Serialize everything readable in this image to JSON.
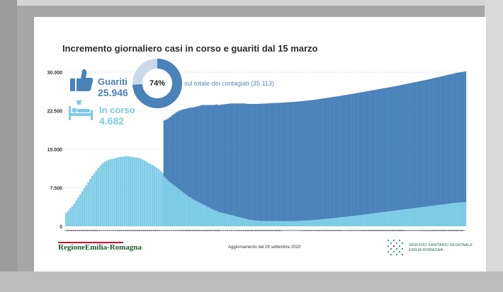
{
  "chart_data": {
    "type": "bar",
    "title": "Incremento giornaliero casi in corso e guariti dal 15 marzo",
    "ylim": [
      0,
      30000
    ],
    "yticks": [
      0,
      7500,
      15000,
      22500,
      30000
    ],
    "ytick_labels": [
      "0",
      "7.500",
      "15.000",
      "22.500",
      "30.000"
    ],
    "x_date_labels": [
      "15/3",
      "16/3",
      "17/3",
      "18/3",
      "19/3",
      "20/3",
      "21/3",
      "22/3",
      "23/3",
      "24/3",
      "25/3",
      "26/3",
      "27/3",
      "28/3",
      "29/3",
      "30/3",
      "31/3",
      "1/4",
      "2/4",
      "3/4",
      "4/4",
      "5/4",
      "6/4",
      "7/4",
      "8/4",
      "9/4",
      "10/4",
      "11/4",
      "12/4",
      "13/4",
      "14/4",
      "15/4",
      "16/4",
      "17/4",
      "18/4",
      "19/4",
      "20/4",
      "21/4",
      "22/4",
      "23/4",
      "24/4",
      "25/4",
      "26/4",
      "27/4",
      "28/4",
      "29/4",
      "30/4",
      "1/5",
      "2/5",
      "3/5",
      "4/5",
      "5/5",
      "6/5",
      "7/5",
      "8/5",
      "9/5",
      "10/5",
      "11/5",
      "12/5",
      "13/5",
      "14/5",
      "15/5",
      "16/5",
      "17/5",
      "18/5",
      "19/5",
      "20/5",
      "21/5",
      "22/5",
      "23/5",
      "24/5",
      "25/5",
      "26/5",
      "27/5",
      "28/5",
      "29/5",
      "30/5",
      "31/5",
      "1/6",
      "2/6",
      "3/6",
      "4/6",
      "5/6",
      "6/6",
      "7/6",
      "8/6",
      "9/6",
      "10/6",
      "11/6",
      "12/6",
      "13/6",
      "14/6",
      "15/6",
      "16/6",
      "17/6",
      "18/6",
      "19/6",
      "20/6",
      "21/6",
      "22/6",
      "23/6",
      "24/6",
      "25/6",
      "26/6",
      "27/6",
      "28/6",
      "29/6",
      "30/6",
      "1/7",
      "2/7",
      "3/7",
      "4/7",
      "5/7",
      "6/7",
      "7/7",
      "8/7",
      "9/7",
      "10/7",
      "11/7",
      "12/7",
      "13/7",
      "14/7",
      "15/7",
      "16/7",
      "17/7",
      "18/7",
      "19/7",
      "20/7",
      "21/7",
      "22/7",
      "23/7",
      "24/7",
      "25/7",
      "26/7",
      "27/7",
      "28/7",
      "29/7",
      "30/7",
      "31/7",
      "1/8",
      "2/8",
      "3/8",
      "4/8",
      "5/8",
      "6/8",
      "7/8",
      "8/8",
      "9/8",
      "10/8",
      "11/8",
      "12/8",
      "13/8",
      "14/8",
      "15/8",
      "16/8",
      "17/8",
      "18/8",
      "19/8",
      "20/8",
      "21/8",
      "22/8",
      "23/8",
      "24/8",
      "25/8",
      "26/8",
      "27/8",
      "28/8",
      "29/8",
      "30/8",
      "31/8",
      "1/9",
      "2/9",
      "3/9",
      "4/9",
      "5/9",
      "6/9",
      "7/9",
      "8/9",
      "9/9",
      "10/9",
      "11/9",
      "12/9",
      "13/9",
      "14/9",
      "15/9",
      "16/9",
      "17/9",
      "18/9",
      "19/9",
      "20/9",
      "21/9",
      "22/9",
      "23/9",
      "24/9",
      "25/9",
      "26/9",
      "27/9",
      "28/9",
      "29/9"
    ],
    "series": [
      {
        "name": "In corso",
        "color": "#7ccbe6",
        "values": [
          2600,
          3000,
          3500,
          3900,
          4400,
          5000,
          5600,
          6200,
          6800,
          7400,
          8000,
          8600,
          9200,
          9800,
          10300,
          10800,
          11300,
          11800,
          12200,
          12500,
          12700,
          12900,
          13000,
          13100,
          13200,
          13300,
          13400,
          13500,
          13500,
          13600,
          13600,
          13600,
          13500,
          13500,
          13400,
          13400,
          13300,
          13200,
          13000,
          12800,
          12600,
          12300,
          12100,
          11900,
          11700,
          11400,
          11100,
          10800,
          10400,
          9600,
          9200,
          8800,
          8500,
          8200,
          7900,
          7600,
          7300,
          7000,
          6700,
          6400,
          6100,
          5800,
          5600,
          5300,
          5100,
          4900,
          4700,
          4500,
          4300,
          4100,
          3900,
          3700,
          3500,
          3300,
          3100,
          3000,
          2800,
          2700,
          2600,
          2500,
          2400,
          2300,
          2200,
          2100,
          2000,
          1900,
          1800,
          1700,
          1600,
          1500,
          1400,
          1300,
          1250,
          1200,
          1150,
          1100,
          1080,
          1050,
          1030,
          1020,
          1010,
          1000,
          1000,
          990,
          990,
          990,
          980,
          980,
          980,
          990,
          990,
          1000,
          1000,
          1010,
          1020,
          1030,
          1050,
          1070,
          1090,
          1110,
          1130,
          1150,
          1170,
          1200,
          1230,
          1260,
          1300,
          1340,
          1380,
          1420,
          1460,
          1500,
          1540,
          1580,
          1620,
          1660,
          1700,
          1740,
          1780,
          1820,
          1860,
          1900,
          1950,
          2000,
          2050,
          2100,
          2150,
          2200,
          2250,
          2300,
          2350,
          2400,
          2450,
          2500,
          2550,
          2600,
          2650,
          2700,
          2750,
          2800,
          2850,
          2900,
          2950,
          3000,
          3050,
          3100,
          3150,
          3200,
          3250,
          3300,
          3350,
          3400,
          3450,
          3500,
          3550,
          3600,
          3650,
          3700,
          3750,
          3800,
          3850,
          3900,
          3950,
          4000,
          4050,
          4100,
          4150,
          4200,
          4250,
          4300,
          4350,
          4400,
          4450,
          4500,
          4550,
          4600,
          4620,
          4640,
          4660,
          4682
        ]
      },
      {
        "name": "Guariti",
        "color": "#4a82ba",
        "values": [
          0,
          0,
          0,
          0,
          0,
          0,
          0,
          0,
          0,
          0,
          0,
          0,
          0,
          0,
          0,
          0,
          0,
          0,
          0,
          0,
          0,
          0,
          0,
          0,
          0,
          0,
          0,
          0,
          0,
          0,
          0,
          0,
          0,
          0,
          0,
          0,
          0,
          0,
          0,
          0,
          0,
          0,
          0,
          0,
          0,
          0,
          0,
          0,
          0,
          11000,
          11600,
          12200,
          12800,
          13400,
          14000,
          14600,
          15100,
          15600,
          16000,
          16400,
          16800,
          17200,
          17500,
          17800,
          18100,
          18400,
          18700,
          19000,
          19300,
          19500,
          19700,
          19900,
          20100,
          20300,
          20500,
          20700,
          20800,
          20950,
          21100,
          21250,
          21400,
          21550,
          21700,
          21800,
          21900,
          22000,
          22100,
          22200,
          22300,
          22400,
          22450,
          22500,
          22550,
          22600,
          22650,
          22700,
          22750,
          22800,
          22830,
          22860,
          22890,
          22920,
          22950,
          22980,
          23000,
          23020,
          23040,
          23060,
          23080,
          23100,
          23120,
          23140,
          23160,
          23180,
          23200,
          23220,
          23240,
          23260,
          23280,
          23300,
          23320,
          23340,
          23360,
          23380,
          23400,
          23420,
          23440,
          23460,
          23480,
          23500,
          23520,
          23540,
          23560,
          23580,
          23600,
          23620,
          23640,
          23660,
          23680,
          23700,
          23720,
          23740,
          23760,
          23780,
          23800,
          23820,
          23840,
          23860,
          23880,
          23900,
          23920,
          23940,
          23960,
          23980,
          24000,
          24020,
          24040,
          24060,
          24080,
          24100,
          24120,
          24140,
          24160,
          24180,
          24200,
          24230,
          24260,
          24290,
          24320,
          24350,
          24380,
          24410,
          24440,
          24470,
          24500,
          24530,
          24560,
          24590,
          24620,
          24650,
          24680,
          24720,
          24760,
          24800,
          24840,
          24880,
          24920,
          24960,
          25000,
          25040,
          25080,
          25120,
          25160,
          25200,
          25240,
          25280,
          25320,
          25360,
          25400,
          25450,
          25500,
          25550,
          25600,
          25650,
          25700,
          25760,
          25820,
          25880,
          25946
        ]
      }
    ],
    "legend": {
      "guariti_label": "Guariti",
      "guariti_value": "25.946",
      "in_corso_label": "In corso",
      "in_corso_value": "4.682"
    },
    "donut": {
      "percent": 74,
      "percent_label": "74%",
      "note": "sul totale dei contagiati (35.113)",
      "fill_color": "#4a82ba",
      "rest_color": "#c9d9ea"
    },
    "grid": true
  },
  "footer": {
    "update_note": "Aggiornamento del 29 settembre 2020",
    "left_logo_text": "RegioneEmilia-Romagna",
    "right_logo_line1": "SERVIZIO SANITARIO REGIONALE",
    "right_logo_line2": "EMILIA-ROMAGNA"
  },
  "colors": {
    "guariti": "#4a82ba",
    "in_corso": "#7ccbe6",
    "grid": "#b9b9b9",
    "logo_red": "#c8102e",
    "logo_green": "#1f5a2c"
  },
  "icons": {
    "guariti_icon": "thumbs-up-icon",
    "in_corso_icon": "hospital-bed-icon"
  }
}
